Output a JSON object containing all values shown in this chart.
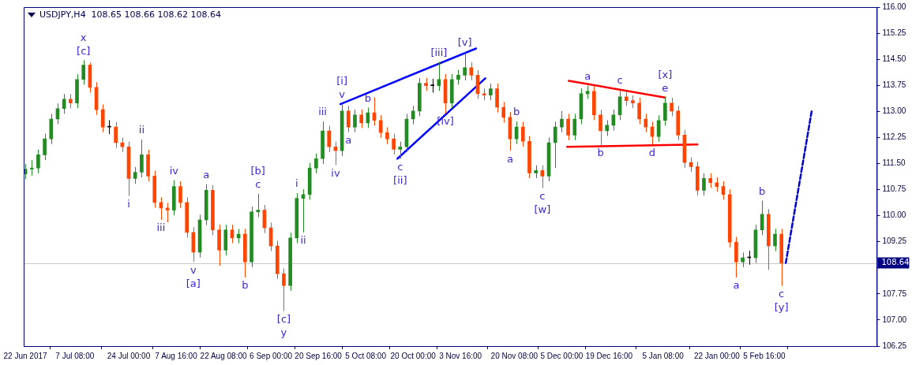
{
  "chart_data": {
    "type": "candlestick",
    "title": "USDJPY,H4  108.65 108.66 108.62 108.64",
    "x": [
      "2017-06-22",
      "2017-06-24",
      "2017-06-26",
      "2017-06-28",
      "2017-06-30",
      "2017-07-02",
      "2017-07-04",
      "2017-07-06",
      "2017-07-08",
      "2017-07-10",
      "2017-07-12",
      "2017-07-14",
      "2017-07-16",
      "2017-07-18",
      "2017-07-20",
      "2017-07-22",
      "2017-07-24",
      "2017-07-26",
      "2017-07-28",
      "2017-07-30",
      "2017-08-01",
      "2017-08-03",
      "2017-08-05",
      "2017-08-07",
      "2017-08-09",
      "2017-08-11",
      "2017-08-13",
      "2017-08-15",
      "2017-08-17",
      "2017-08-19",
      "2017-08-21",
      "2017-08-23",
      "2017-08-25",
      "2017-08-27",
      "2017-08-29",
      "2017-08-31",
      "2017-09-02",
      "2017-09-04",
      "2017-09-06",
      "2017-09-08",
      "2017-09-10",
      "2017-09-12",
      "2017-09-14",
      "2017-09-16",
      "2017-09-18",
      "2017-09-20",
      "2017-09-22",
      "2017-09-24",
      "2017-09-26",
      "2017-09-28",
      "2017-09-30",
      "2017-10-02",
      "2017-10-04",
      "2017-10-06",
      "2017-10-08",
      "2017-10-10",
      "2017-10-12",
      "2017-10-14",
      "2017-10-16",
      "2017-10-18",
      "2017-10-20",
      "2017-10-22",
      "2017-10-24",
      "2017-10-26",
      "2017-10-28",
      "2017-10-30",
      "2017-11-01",
      "2017-11-03",
      "2017-11-05",
      "2017-11-07",
      "2017-11-09",
      "2017-11-11",
      "2017-11-13",
      "2017-11-15",
      "2017-11-17",
      "2017-11-19",
      "2017-11-21",
      "2017-11-23",
      "2017-11-25",
      "2017-11-27",
      "2017-11-29",
      "2017-12-01",
      "2017-12-03",
      "2017-12-05",
      "2017-12-07",
      "2017-12-09",
      "2017-12-11",
      "2017-12-13",
      "2017-12-15",
      "2017-12-17",
      "2017-12-19",
      "2017-12-21",
      "2017-12-23",
      "2017-12-25",
      "2017-12-27",
      "2017-12-29",
      "2017-12-31",
      "2018-01-02",
      "2018-01-04",
      "2018-01-06",
      "2018-01-08",
      "2018-01-10",
      "2018-01-12",
      "2018-01-14",
      "2018-01-16",
      "2018-01-18",
      "2018-01-20",
      "2018-01-22",
      "2018-01-24",
      "2018-01-26",
      "2018-01-28",
      "2018-01-30",
      "2018-02-01",
      "2018-02-03",
      "2018-02-05",
      "2018-02-07",
      "2018-02-09",
      "2018-02-11"
    ],
    "ohlc": [
      [
        111.2,
        111.49,
        111.05,
        111.34
      ],
      [
        111.34,
        111.6,
        111.15,
        111.37
      ],
      [
        111.37,
        111.9,
        111.22,
        111.75
      ],
      [
        111.75,
        112.36,
        111.6,
        112.21
      ],
      [
        112.21,
        112.93,
        112.06,
        112.78
      ],
      [
        112.78,
        113.23,
        112.63,
        113.08
      ],
      [
        113.08,
        113.5,
        112.93,
        113.35
      ],
      [
        113.35,
        113.5,
        113.09,
        113.24
      ],
      [
        113.24,
        114.07,
        113.09,
        113.92
      ],
      [
        113.92,
        114.47,
        113.77,
        114.33
      ],
      [
        114.33,
        114.4,
        113.54,
        113.69
      ],
      [
        113.69,
        113.84,
        112.9,
        113.05
      ],
      [
        113.05,
        113.2,
        112.4,
        112.55
      ],
      [
        112.55,
        112.75,
        112.35,
        112.55
      ],
      [
        112.55,
        112.7,
        111.95,
        112.1
      ],
      [
        112.1,
        112.25,
        111.83,
        111.98
      ],
      [
        111.98,
        112.13,
        110.57,
        111.07
      ],
      [
        111.07,
        111.4,
        110.92,
        111.25
      ],
      [
        111.25,
        112.19,
        111.1,
        111.75
      ],
      [
        111.75,
        111.9,
        110.99,
        111.14
      ],
      [
        111.14,
        111.29,
        110.23,
        110.38
      ],
      [
        110.38,
        110.53,
        109.88,
        110.22
      ],
      [
        110.22,
        110.37,
        109.81,
        110.16
      ],
      [
        110.16,
        111.02,
        110.01,
        110.84
      ],
      [
        110.84,
        110.99,
        110.23,
        110.38
      ],
      [
        110.38,
        110.53,
        109.37,
        109.52
      ],
      [
        109.52,
        109.67,
        108.67,
        108.95
      ],
      [
        108.95,
        110.03,
        108.8,
        109.88
      ],
      [
        109.88,
        110.91,
        109.73,
        110.73
      ],
      [
        110.73,
        110.88,
        109.44,
        109.59
      ],
      [
        109.59,
        109.74,
        108.56,
        109.01
      ],
      [
        109.01,
        109.74,
        108.86,
        109.59
      ],
      [
        109.59,
        109.74,
        109.21,
        109.36
      ],
      [
        109.36,
        109.62,
        109.21,
        109.47
      ],
      [
        109.47,
        109.62,
        108.22,
        108.67
      ],
      [
        108.67,
        110.26,
        108.52,
        110.11
      ],
      [
        110.11,
        110.63,
        109.96,
        110.16
      ],
      [
        110.16,
        110.31,
        109.5,
        109.65
      ],
      [
        109.65,
        109.8,
        108.98,
        109.13
      ],
      [
        109.13,
        109.28,
        108.18,
        108.33
      ],
      [
        108.33,
        108.48,
        107.26,
        107.99
      ],
      [
        107.99,
        109.51,
        107.84,
        109.36
      ],
      [
        109.36,
        110.65,
        109.21,
        110.5
      ],
      [
        110.5,
        110.76,
        109.52,
        110.61
      ],
      [
        110.61,
        111.52,
        110.46,
        111.37
      ],
      [
        111.37,
        111.79,
        111.22,
        111.64
      ],
      [
        111.64,
        112.71,
        111.49,
        112.44
      ],
      [
        112.44,
        112.59,
        111.83,
        111.98
      ],
      [
        111.98,
        112.13,
        111.46,
        111.87
      ],
      [
        111.87,
        113.21,
        111.72,
        113.01
      ],
      [
        113.01,
        113.16,
        112.4,
        112.55
      ],
      [
        112.55,
        113.05,
        112.4,
        112.9
      ],
      [
        112.9,
        113.05,
        112.52,
        112.67
      ],
      [
        112.67,
        113.11,
        112.52,
        112.96
      ],
      [
        112.96,
        113.4,
        112.59,
        112.74
      ],
      [
        112.74,
        112.89,
        112.24,
        112.39
      ],
      [
        112.39,
        112.54,
        112.06,
        112.21
      ],
      [
        112.21,
        112.36,
        111.76,
        111.91
      ],
      [
        111.91,
        112.13,
        111.64,
        111.98
      ],
      [
        111.98,
        112.93,
        111.83,
        112.78
      ],
      [
        112.78,
        113.16,
        112.63,
        113.01
      ],
      [
        113.01,
        113.96,
        112.86,
        113.81
      ],
      [
        113.81,
        113.96,
        113.59,
        113.74
      ],
      [
        113.74,
        113.94,
        113.54,
        113.74
      ],
      [
        113.74,
        114.42,
        113.59,
        113.92
      ],
      [
        113.92,
        114.07,
        112.94,
        113.24
      ],
      [
        113.24,
        114.07,
        113.09,
        113.92
      ],
      [
        113.92,
        114.19,
        113.77,
        114.04
      ],
      [
        114.04,
        114.72,
        113.89,
        114.26
      ],
      [
        114.26,
        114.41,
        113.89,
        114.04
      ],
      [
        114.04,
        114.19,
        113.36,
        113.51
      ],
      [
        113.51,
        113.66,
        113.32,
        113.47
      ],
      [
        113.47,
        113.8,
        113.32,
        113.65
      ],
      [
        113.65,
        113.8,
        112.97,
        113.12
      ],
      [
        113.12,
        113.27,
        112.68,
        112.83
      ],
      [
        112.83,
        112.98,
        111.87,
        112.21
      ],
      [
        112.21,
        112.71,
        112.06,
        112.55
      ],
      [
        112.55,
        112.7,
        111.99,
        112.14
      ],
      [
        112.14,
        112.29,
        111.08,
        111.23
      ],
      [
        111.23,
        111.45,
        111.08,
        111.3
      ],
      [
        111.3,
        111.45,
        110.8,
        111.14
      ],
      [
        111.14,
        112.25,
        110.99,
        112.1
      ],
      [
        112.1,
        112.7,
        111.37,
        112.55
      ],
      [
        112.55,
        113.01,
        112.4,
        112.78
      ],
      [
        112.78,
        112.93,
        112.17,
        112.32
      ],
      [
        112.32,
        112.93,
        112.17,
        112.78
      ],
      [
        112.78,
        113.66,
        112.63,
        113.51
      ],
      [
        113.51,
        113.74,
        113.36,
        113.58
      ],
      [
        113.58,
        113.73,
        112.75,
        112.9
      ],
      [
        112.9,
        113.05,
        112.03,
        112.44
      ],
      [
        112.44,
        112.75,
        112.29,
        112.6
      ],
      [
        112.6,
        113.05,
        112.45,
        112.9
      ],
      [
        112.9,
        113.63,
        112.75,
        113.42
      ],
      [
        113.42,
        113.57,
        113.16,
        113.31
      ],
      [
        113.31,
        113.46,
        113.09,
        113.24
      ],
      [
        113.24,
        113.39,
        112.63,
        112.78
      ],
      [
        112.78,
        112.93,
        112.4,
        112.55
      ],
      [
        112.55,
        112.7,
        112.05,
        112.28
      ],
      [
        112.28,
        112.89,
        112.13,
        112.74
      ],
      [
        112.74,
        113.4,
        112.59,
        113.24
      ],
      [
        113.24,
        113.39,
        112.86,
        113.01
      ],
      [
        113.01,
        113.16,
        112.17,
        112.32
      ],
      [
        112.32,
        112.47,
        111.38,
        111.53
      ],
      [
        111.53,
        111.68,
        111.26,
        111.41
      ],
      [
        111.41,
        111.56,
        110.58,
        110.73
      ],
      [
        110.73,
        111.22,
        110.58,
        111.07
      ],
      [
        111.07,
        111.22,
        110.8,
        110.95
      ],
      [
        110.95,
        111.1,
        110.69,
        110.84
      ],
      [
        110.84,
        110.99,
        110.46,
        110.61
      ],
      [
        110.61,
        110.76,
        109.09,
        109.24
      ],
      [
        109.24,
        109.39,
        108.22,
        108.67
      ],
      [
        108.67,
        108.94,
        108.52,
        108.79
      ],
      [
        108.79,
        108.99,
        108.59,
        108.79
      ],
      [
        108.79,
        109.74,
        108.64,
        109.59
      ],
      [
        109.59,
        110.43,
        109.44,
        110.04
      ],
      [
        110.04,
        110.19,
        108.44,
        109.13
      ],
      [
        109.13,
        109.62,
        108.98,
        109.47
      ],
      [
        109.47,
        109.62,
        107.98,
        108.64
      ]
    ],
    "series": [
      {
        "type": "line",
        "color": "#0000ff",
        "x": [
          "2017-09-27T12:00",
          "2017-11-08T12:00"
        ],
        "values": [
          113.21,
          114.81
        ]
      },
      {
        "type": "line",
        "color": "#0000ff",
        "x": [
          "2017-10-15T04:00",
          "2017-11-11T08:00"
        ],
        "values": [
          111.64,
          113.95
        ]
      },
      {
        "type": "line",
        "color": "#ff0000",
        "x": [
          "2017-12-07T04:00",
          "2018-01-06T00:00"
        ],
        "values": [
          113.88,
          113.4
        ]
      },
      {
        "type": "line",
        "color": "#ff0000",
        "x": [
          "2017-12-06T16:00",
          "2018-01-16T00:00"
        ],
        "values": [
          111.98,
          112.05
        ]
      },
      {
        "type": "line",
        "color": "#0000cc",
        "line_style": "dashed",
        "x": [
          "2018-02-12T08:00",
          "2018-02-20T08:00"
        ],
        "values": [
          108.64,
          113.0
        ]
      }
    ],
    "xlim": [
      "2017-06-21T12:00",
      "2018-03-12T12:00"
    ],
    "xticks": [
      {
        "value": "2017-06-22",
        "label": "22 Jun 2017"
      },
      {
        "value": "2017-07-07T08:00",
        "label": "7 Jul 08:00"
      },
      {
        "value": "2017-07-24T00:00",
        "label": "24 Jul 00:00"
      },
      {
        "value": "2017-08-07T16:00",
        "label": "7 Aug 16:00"
      },
      {
        "value": "2017-08-22T08:00",
        "label": "22 Aug 08:00"
      },
      {
        "value": "2017-09-06T00:00",
        "label": "6 Sep 00:00"
      },
      {
        "value": "2017-09-20T16:00",
        "label": "20 Sep 16:00"
      },
      {
        "value": "2017-10-05T08:00",
        "label": "5 Oct 08:00"
      },
      {
        "value": "2017-10-20T00:00",
        "label": "20 Oct 00:00"
      },
      {
        "value": "2017-11-03T16:00",
        "label": "3 Nov 16:00"
      },
      {
        "value": "2017-11-20T08:00",
        "label": "20 Nov 08:00"
      },
      {
        "value": "2017-12-05T00:00",
        "label": "5 Dec 00:00"
      },
      {
        "value": "2017-12-19T16:00",
        "label": "19 Dec 16:00"
      },
      {
        "value": "2018-01-05T08:00",
        "label": "5 Jan 08:00"
      },
      {
        "value": "2018-01-22T00:00",
        "label": "22 Jan 00:00"
      },
      {
        "value": "2018-02-05T16:00",
        "label": "5 Feb 16:00"
      }
    ],
    "ylim": [
      106.25,
      116
    ],
    "yticks": [
      {
        "value": 106.25,
        "label": "106.25"
      },
      {
        "value": 107,
        "label": "107.00"
      },
      {
        "value": 107.75,
        "label": "107.75"
      },
      {
        "value": 108.5,
        "label": null
      },
      {
        "value": 109.25,
        "label": "109.25"
      },
      {
        "value": 110,
        "label": "110.00"
      },
      {
        "value": 110.75,
        "label": "110.75"
      },
      {
        "value": 111.5,
        "label": "111.50"
      },
      {
        "value": 112.25,
        "label": "112.25"
      },
      {
        "value": 113,
        "label": "113.00"
      },
      {
        "value": 113.75,
        "label": "113.75"
      },
      {
        "value": 114.5,
        "label": "114.50"
      },
      {
        "value": 115.25,
        "label": "115.25"
      },
      {
        "value": 116,
        "label": "116.00"
      }
    ],
    "ref_lines": [
      {
        "axis": "y",
        "value": 108.64,
        "label": "108.64",
        "color": "#c8c8c8"
      }
    ],
    "annotations": [
      {
        "text": "[c]",
        "x": "2017-07-10",
        "y": 114.47
      },
      {
        "text": "x",
        "x": "2017-07-10",
        "y": 114.47
      },
      {
        "text": "i",
        "x": "2017-07-24",
        "y": 110.57
      },
      {
        "text": "ii",
        "x": "2017-07-28",
        "y": 112.19
      },
      {
        "text": "iii",
        "x": "2017-08-03",
        "y": 109.88
      },
      {
        "text": "iv",
        "x": "2017-08-07",
        "y": 111.02
      },
      {
        "text": "v",
        "x": "2017-08-13",
        "y": 108.67
      },
      {
        "text": "[a]",
        "x": "2017-08-13",
        "y": 108.67
      },
      {
        "text": "a",
        "x": "2017-08-17",
        "y": 110.91
      },
      {
        "text": "b",
        "x": "2017-08-29",
        "y": 108.22
      },
      {
        "text": "c",
        "x": "2017-09-02",
        "y": 110.63
      },
      {
        "text": "[b]",
        "x": "2017-09-02",
        "y": 110.63
      },
      {
        "text": "[c]",
        "x": "2017-09-10",
        "y": 107.26
      },
      {
        "text": "y",
        "x": "2017-09-10",
        "y": 107.26
      },
      {
        "text": "i",
        "x": "2017-09-14",
        "y": 110.65
      },
      {
        "text": "ii",
        "x": "2017-09-16",
        "y": 109.52
      },
      {
        "text": "iii",
        "x": "2017-09-22",
        "y": 112.71
      },
      {
        "text": "iv",
        "x": "2017-09-26",
        "y": 111.46
      },
      {
        "text": "v",
        "x": "2017-09-28",
        "y": 113.21
      },
      {
        "text": "[i]",
        "x": "2017-09-28",
        "y": 113.21
      },
      {
        "text": "a",
        "x": "2017-09-30",
        "y": 112.4
      },
      {
        "text": "b",
        "x": "2017-10-06",
        "y": 113.11
      },
      {
        "text": "c",
        "x": "2017-10-16",
        "y": 111.64
      },
      {
        "text": "[ii]",
        "x": "2017-10-16",
        "y": 111.64
      },
      {
        "text": "[iii]",
        "x": "2017-10-28",
        "y": 114.42
      },
      {
        "text": "[iv]",
        "x": "2017-10-30",
        "y": 112.94
      },
      {
        "text": "[v]",
        "x": "2017-11-05",
        "y": 114.72
      },
      {
        "text": "a",
        "x": "2017-11-19",
        "y": 111.87
      },
      {
        "text": "b",
        "x": "2017-11-21",
        "y": 112.71
      },
      {
        "text": "c",
        "x": "2017-11-29",
        "y": 110.8
      },
      {
        "text": "[w]",
        "x": "2017-11-29",
        "y": 110.8
      },
      {
        "text": "a",
        "x": "2017-12-13",
        "y": 113.74
      },
      {
        "text": "b",
        "x": "2017-12-17",
        "y": 112.03
      },
      {
        "text": "c",
        "x": "2017-12-23",
        "y": 113.63
      },
      {
        "text": "d",
        "x": "2018-01-02",
        "y": 112.05
      },
      {
        "text": "e",
        "x": "2018-01-06",
        "y": 113.4
      },
      {
        "text": "[x]",
        "x": "2018-01-06",
        "y": 113.4
      },
      {
        "text": "a",
        "x": "2018-01-28",
        "y": 108.22
      },
      {
        "text": "b",
        "x": "2018-02-05",
        "y": 110.43
      },
      {
        "text": "c",
        "x": "2018-02-11",
        "y": 107.98
      },
      {
        "text": "[y]",
        "x": "2018-02-11",
        "y": 107.98
      }
    ]
  }
}
